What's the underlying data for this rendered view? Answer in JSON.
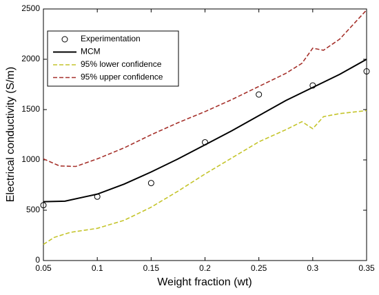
{
  "chart_data": {
    "type": "line",
    "xlabel": "Weight fraction (wt)",
    "ylabel": "Electrical conductivity (S/m)",
    "xlim": [
      0.05,
      0.35
    ],
    "xticks": [
      0.05,
      0.1,
      0.15,
      0.2,
      0.25,
      0.3,
      0.35
    ],
    "ylim": [
      0,
      2500
    ],
    "yticks": [
      0,
      500,
      1000,
      1500,
      2000,
      2500
    ],
    "grid": false,
    "legend": "upper left",
    "series": [
      {
        "name": "Experimentation",
        "color": "#000000",
        "style": "markers",
        "x": [
          0.05,
          0.1,
          0.15,
          0.2,
          0.25,
          0.3,
          0.35
        ],
        "values": [
          550,
          635,
          770,
          1175,
          1650,
          1740,
          1880
        ]
      },
      {
        "name": "MCM",
        "color": "#000000",
        "style": "solid",
        "x": [
          0.05,
          0.07,
          0.1,
          0.125,
          0.15,
          0.175,
          0.2,
          0.225,
          0.25,
          0.275,
          0.3,
          0.325,
          0.35
        ],
        "values": [
          585,
          590,
          660,
          760,
          880,
          1010,
          1150,
          1290,
          1440,
          1590,
          1720,
          1850,
          2000
        ]
      },
      {
        "name": "95% lower confidence",
        "color": "#c4c42a",
        "style": "dashed",
        "x": [
          0.05,
          0.06,
          0.075,
          0.1,
          0.125,
          0.15,
          0.175,
          0.2,
          0.225,
          0.25,
          0.275,
          0.29,
          0.3,
          0.31,
          0.325,
          0.35
        ],
        "values": [
          160,
          230,
          280,
          320,
          400,
          530,
          690,
          860,
          1020,
          1180,
          1300,
          1380,
          1310,
          1430,
          1460,
          1490
        ]
      },
      {
        "name": "95% upper confidence",
        "color": "#a5302a",
        "style": "dashed",
        "x": [
          0.05,
          0.065,
          0.08,
          0.1,
          0.125,
          0.15,
          0.175,
          0.2,
          0.225,
          0.25,
          0.275,
          0.29,
          0.3,
          0.31,
          0.325,
          0.35
        ],
        "values": [
          1010,
          940,
          935,
          1010,
          1120,
          1250,
          1370,
          1480,
          1600,
          1730,
          1860,
          1960,
          2110,
          2090,
          2200,
          2490
        ]
      }
    ]
  }
}
